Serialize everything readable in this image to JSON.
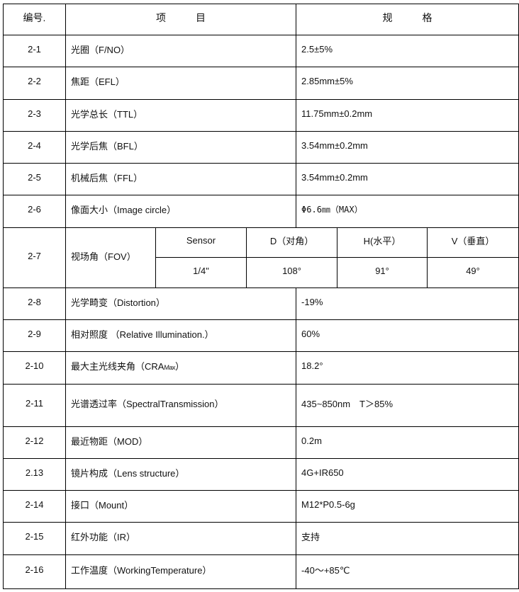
{
  "header": {
    "no": "编号.",
    "item": "项　　　目",
    "spec": "规　　　格"
  },
  "rows": [
    {
      "no": "2-1",
      "item": "光圈（F/NO）",
      "spec": "2.5±5%"
    },
    {
      "no": "2-2",
      "item": "焦距（EFL）",
      "spec": "2.85mm±5%"
    },
    {
      "no": "2-3",
      "item": "光学总长（TTL）",
      "spec": "11.75mm±0.2mm"
    },
    {
      "no": "2-4",
      "item": "光学后焦（BFL）",
      "spec": "3.54mm±0.2mm"
    },
    {
      "no": "2-5",
      "item": "机械后焦（FFL）",
      "spec": "3.54mm±0.2mm"
    },
    {
      "no": "2-6",
      "item": "像面大小（Image circle）",
      "spec": "Φ6.6㎜（MAX）"
    }
  ],
  "fov": {
    "no": "2-7",
    "item": "视场角（FOV）",
    "headers": [
      "Sensor",
      "D（对角）",
      "H(水平）",
      "V（垂直）"
    ],
    "values": [
      "1/4\"",
      "108°",
      "91°",
      "49°"
    ]
  },
  "rows2": [
    {
      "no": "2-8",
      "item": "光学畸变（Distortion）",
      "spec": "-19%"
    },
    {
      "no": "2-9",
      "item": "相对照度 （Relative Illumination.）",
      "spec": "60%"
    },
    {
      "no": "2-10",
      "item": "最大主光线夹角（CRA",
      "item_sub": "Max",
      "item_end": "）",
      "spec": "18.2°"
    },
    {
      "no": "2-11",
      "item": "光谱透过率（SpectralTransmission）",
      "spec": "435~850nm　T＞85%"
    },
    {
      "no": "2-12",
      "item": "最近物距（MOD）",
      "spec": "0.2m"
    },
    {
      "no": "2.13",
      "item": "镜片构成（Lens structure）",
      "spec": "4G+IR650"
    },
    {
      "no": "2-14",
      "item": "接口（Mount）",
      "spec": "M12*P0.5-6g"
    },
    {
      "no": "2-15",
      "item": "红外功能（IR）",
      "spec": "支持"
    },
    {
      "no": "2-16",
      "item": "工作温度（WorkingTemperature）",
      "spec": "-40～+85℃"
    }
  ]
}
